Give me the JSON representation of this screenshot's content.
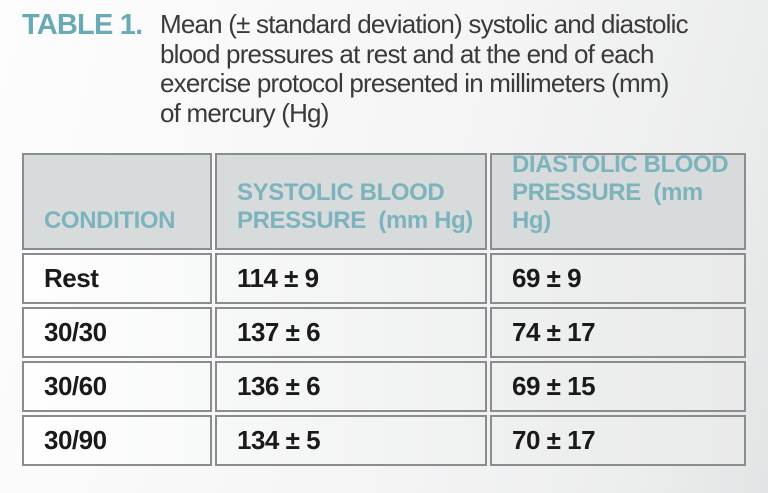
{
  "header": {
    "label": "TABLE 1.",
    "caption": "Mean (± standard deviation) systolic and diastolic\nblood pressures at rest and at the end of each\nexercise protocol presented in millimeters (mm)\nof mercury (Hg)"
  },
  "table": {
    "column_headers": [
      "CONDITION",
      "SYSTOLIC BLOOD\nPRESSURE  (mm Hg)",
      "DIASTOLIC BLOOD\nPRESSURE  (mm Hg)"
    ],
    "rows": [
      {
        "cells": [
          "Rest",
          "114 ± 9",
          "69 ± 9"
        ]
      },
      {
        "cells": [
          "30/30",
          "137 ± 6",
          "74 ± 17"
        ]
      },
      {
        "cells": [
          "30/60",
          "136 ± 6",
          "69 ± 15"
        ]
      },
      {
        "cells": [
          "30/90",
          "134 ± 5",
          "70 ± 17"
        ]
      }
    ],
    "units": "mm Hg"
  },
  "colors": {
    "title_teal": "#6aaab7",
    "header_text_teal": "#7db3bd",
    "header_row_bg": "#d8dbdc",
    "border_gray": "#8a8c8f",
    "caption_text": "#3a3a3a",
    "data_text": "#1a1a1c"
  }
}
